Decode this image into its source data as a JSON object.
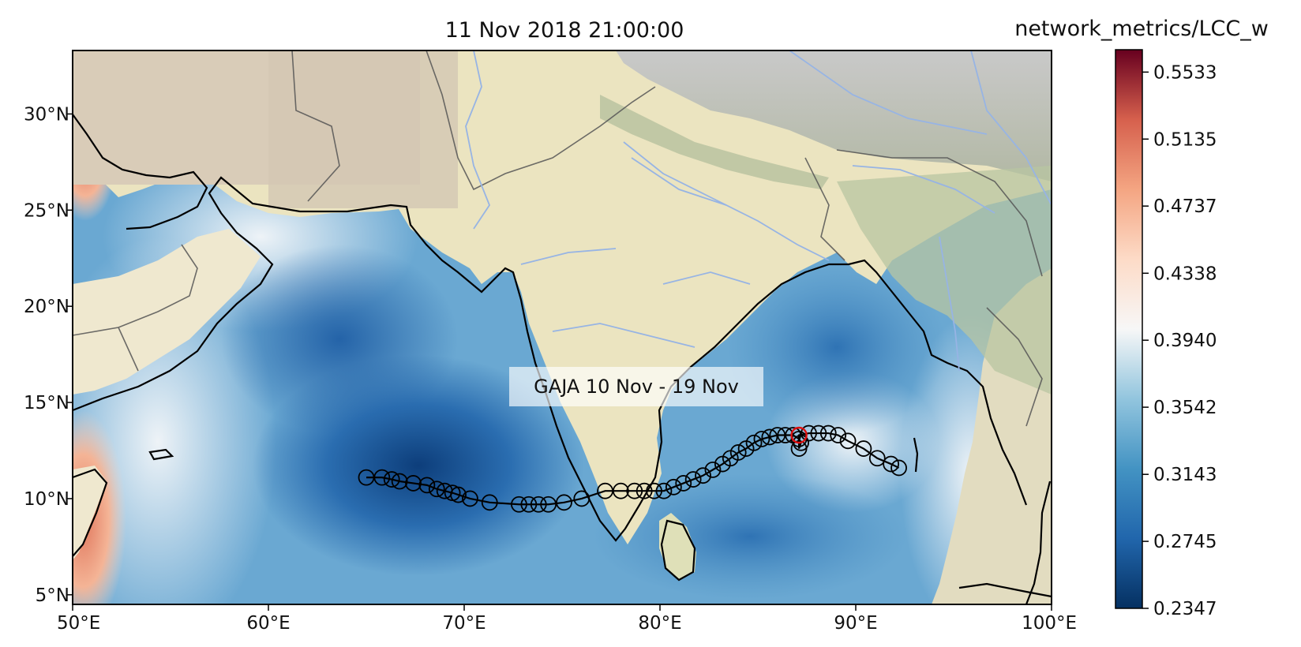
{
  "map": {
    "title": "11 Nov 2018 21:00:00",
    "annotation": "GAJA 10 Nov - 19 Nov",
    "extent": {
      "lon": [
        50,
        100
      ],
      "lat": [
        4.5,
        33.3
      ]
    },
    "x_ticks": [
      {
        "value": 50,
        "label": "50°E"
      },
      {
        "value": 60,
        "label": "60°E"
      },
      {
        "value": 70,
        "label": "70°E"
      },
      {
        "value": 80,
        "label": "80°E"
      },
      {
        "value": 90,
        "label": "90°E"
      },
      {
        "value": 100,
        "label": "100°E"
      }
    ],
    "y_ticks": [
      {
        "value": 5,
        "label": "5°N"
      },
      {
        "value": 10,
        "label": "10°N"
      },
      {
        "value": 15,
        "label": "15°N"
      },
      {
        "value": 20,
        "label": "20°N"
      },
      {
        "value": 25,
        "label": "25°N"
      },
      {
        "value": 30,
        "label": "30°N"
      }
    ],
    "track": [
      [
        65.0,
        11.1
      ],
      [
        65.8,
        11.1
      ],
      [
        66.3,
        11.0
      ],
      [
        66.7,
        10.9
      ],
      [
        67.4,
        10.8
      ],
      [
        68.1,
        10.7
      ],
      [
        68.6,
        10.5
      ],
      [
        69.0,
        10.4
      ],
      [
        69.4,
        10.3
      ],
      [
        69.7,
        10.2
      ],
      [
        70.3,
        10.0
      ],
      [
        71.3,
        9.8
      ],
      [
        72.8,
        9.7
      ],
      [
        73.3,
        9.7
      ],
      [
        73.8,
        9.7
      ],
      [
        74.3,
        9.7
      ],
      [
        75.1,
        9.8
      ],
      [
        76.0,
        10.0
      ],
      [
        77.2,
        10.4
      ],
      [
        78.0,
        10.4
      ],
      [
        78.7,
        10.4
      ],
      [
        79.2,
        10.4
      ],
      [
        79.7,
        10.4
      ],
      [
        80.2,
        10.4
      ],
      [
        80.7,
        10.6
      ],
      [
        81.2,
        10.8
      ],
      [
        81.7,
        11.0
      ],
      [
        82.2,
        11.2
      ],
      [
        82.7,
        11.5
      ],
      [
        83.2,
        11.8
      ],
      [
        83.6,
        12.1
      ],
      [
        84.0,
        12.4
      ],
      [
        84.4,
        12.6
      ],
      [
        84.8,
        12.9
      ],
      [
        85.2,
        13.1
      ],
      [
        85.6,
        13.2
      ],
      [
        86.0,
        13.3
      ],
      [
        86.4,
        13.3
      ],
      [
        86.8,
        13.3
      ],
      [
        87.1,
        13.1
      ],
      [
        87.2,
        12.9
      ],
      [
        87.1,
        12.6
      ],
      [
        87.1,
        13.3
      ],
      [
        87.6,
        13.4
      ],
      [
        88.1,
        13.4
      ],
      [
        88.6,
        13.4
      ],
      [
        89.1,
        13.3
      ],
      [
        89.6,
        13.0
      ],
      [
        90.4,
        12.6
      ],
      [
        91.1,
        12.1
      ],
      [
        91.8,
        11.8
      ],
      [
        92.2,
        11.6
      ]
    ],
    "current_position": [
      87.1,
      13.3
    ],
    "colors": {
      "track": "#000000",
      "current_marker": "#dd1111",
      "ocean_low": "#0b3f80",
      "ocean_high": "#f4a582",
      "land": "#ebe4c0",
      "rivers": "#97b4e4",
      "borders": "#666666"
    }
  },
  "colorbar": {
    "title": "network_metrics/LCC_w",
    "min": 0.2347,
    "max": 0.5666,
    "ticks": [
      {
        "value": 0.2347,
        "label": "0.2347"
      },
      {
        "value": 0.2745,
        "label": "0.2745"
      },
      {
        "value": 0.3143,
        "label": "0.3143"
      },
      {
        "value": 0.3542,
        "label": "0.3542"
      },
      {
        "value": 0.394,
        "label": "0.3940"
      },
      {
        "value": 0.4338,
        "label": "0.4338"
      },
      {
        "value": 0.4737,
        "label": "0.4737"
      },
      {
        "value": 0.5135,
        "label": "0.5135"
      },
      {
        "value": 0.5533,
        "label": "0.5533"
      }
    ],
    "colormap": "RdBu_r"
  }
}
